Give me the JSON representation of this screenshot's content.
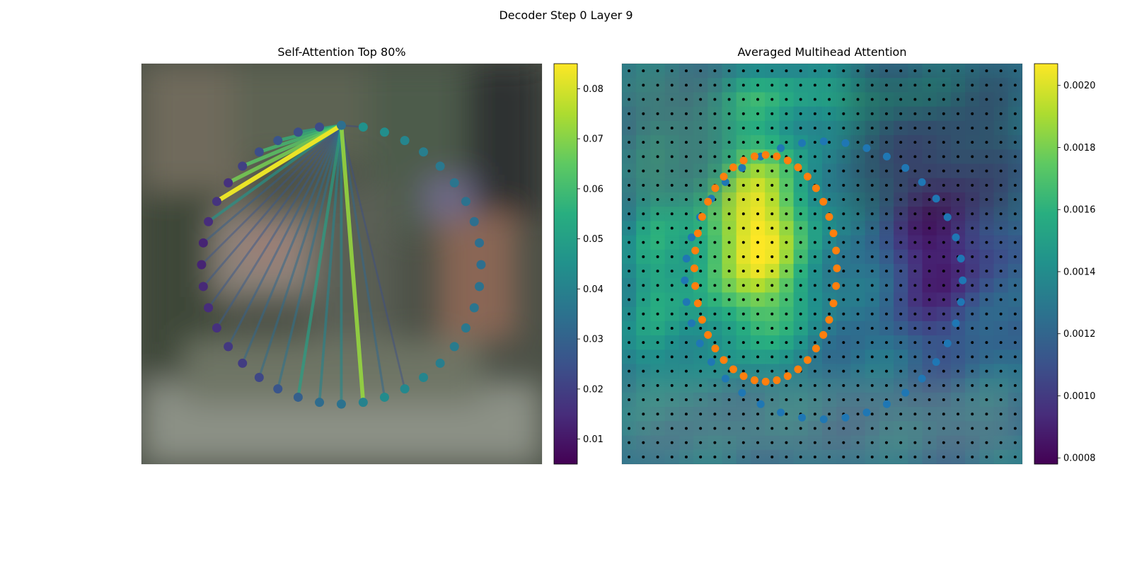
{
  "figure": {
    "title": "Decoder Step 0 Layer 9"
  },
  "chart_data": [
    {
      "type": "scatter",
      "title": "Self-Attention Top 80%",
      "description_of_marks": "ring of keypoints with attention lines from a single query keypoint",
      "ring": {
        "count": 40,
        "center": [
          0.499,
          0.502
        ],
        "radius": [
          0.349,
          0.348
        ],
        "start_angle_deg": -90,
        "query_index": 0,
        "values": [
          0.034,
          0.045,
          0.044,
          0.041,
          0.039,
          0.037,
          0.036,
          0.035,
          0.034,
          0.034,
          0.034,
          0.035,
          0.036,
          0.037,
          0.038,
          0.039,
          0.041,
          0.042,
          0.043,
          0.04,
          0.035,
          0.033,
          0.029,
          0.026,
          0.022,
          0.019,
          0.018,
          0.016,
          0.015,
          0.014,
          0.013,
          0.013,
          0.015,
          0.017,
          0.016,
          0.02,
          0.024,
          0.026,
          0.024,
          0.023
        ]
      },
      "links": [
        {
          "to": 33,
          "value": 0.083
        },
        {
          "to": 19,
          "value": 0.072
        },
        {
          "to": 34,
          "value": 0.068
        },
        {
          "to": 35,
          "value": 0.064
        },
        {
          "to": 36,
          "value": 0.06
        },
        {
          "to": 37,
          "value": 0.057
        },
        {
          "to": 32,
          "value": 0.046
        },
        {
          "to": 22,
          "value": 0.05
        },
        {
          "to": 38,
          "value": 0.052
        },
        {
          "to": 20,
          "value": 0.042
        },
        {
          "to": 21,
          "value": 0.04
        },
        {
          "to": 18,
          "value": 0.032
        },
        {
          "to": 23,
          "value": 0.035
        },
        {
          "to": 24,
          "value": 0.033
        },
        {
          "to": 25,
          "value": 0.032
        },
        {
          "to": 26,
          "value": 0.03
        },
        {
          "to": 27,
          "value": 0.028
        },
        {
          "to": 28,
          "value": 0.027
        },
        {
          "to": 29,
          "value": 0.027
        },
        {
          "to": 30,
          "value": 0.026
        },
        {
          "to": 31,
          "value": 0.029
        },
        {
          "to": 17,
          "value": 0.024
        },
        {
          "to": 1,
          "value": 0.022
        }
      ],
      "colorbar": {
        "colormap": "viridis",
        "range": [
          0.005,
          0.085
        ],
        "ticks": [
          0.01,
          0.02,
          0.03,
          0.04,
          0.05,
          0.06,
          0.07,
          0.08
        ]
      }
    },
    {
      "type": "heatmap",
      "title": "Averaged Multihead Attention",
      "grid": {
        "rows": 28,
        "cols": 28
      },
      "colorbar": {
        "colormap": "viridis",
        "range": [
          0.00078,
          0.00207
        ],
        "ticks": [
          0.0008,
          0.001,
          0.0012,
          0.0014,
          0.0016,
          0.0018,
          0.002
        ]
      },
      "series": [
        {
          "color": "#1f77b4",
          "shape": "ellipse",
          "count": 40,
          "center": [
            0.504,
            0.541
          ],
          "radius": [
            0.347,
            0.347
          ]
        },
        {
          "color": "#ff7f0e",
          "shape": "ellipse",
          "count": 40,
          "center": [
            0.359,
            0.511
          ],
          "radius": [
            0.178,
            0.283
          ]
        }
      ],
      "grid_points": {
        "color": "#000000"
      }
    }
  ]
}
